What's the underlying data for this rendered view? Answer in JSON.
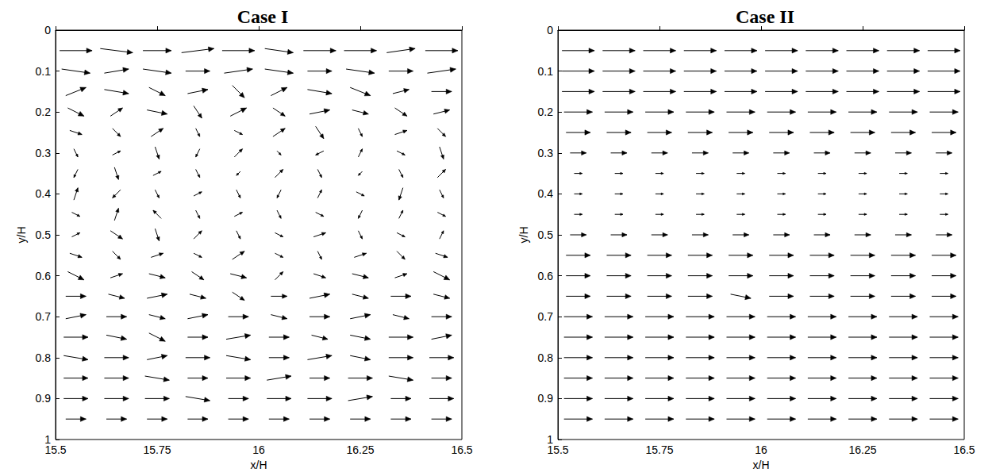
{
  "chart_data": [
    {
      "type": "vector",
      "title": "Case I",
      "x_label": "x/H",
      "y_label": "y/H",
      "xlim": [
        15.5,
        16.5
      ],
      "xticks": [
        15.5,
        15.75,
        16,
        16.25,
        16.5
      ],
      "ylim": [
        0,
        1
      ],
      "yticks": [
        0,
        0.1,
        0.2,
        0.3,
        0.4,
        0.5,
        0.6,
        0.7,
        0.8,
        0.9,
        1
      ],
      "x": [
        15.55,
        15.65,
        15.75,
        15.85,
        15.95,
        16.05,
        16.15,
        16.25,
        16.35,
        16.45
      ],
      "rows": [
        {
          "y": 0.05,
          "u": [
            0.08,
            0.08,
            0.07,
            0.08,
            0.08,
            0.07,
            0.08,
            0.08,
            0.07,
            0.08
          ],
          "v": [
            0,
            0.01,
            0,
            -0.01,
            0,
            0.01,
            0,
            0,
            -0.01,
            0
          ]
        },
        {
          "y": 0.1,
          "u": [
            0.07,
            0.06,
            0.07,
            0.06,
            0.07,
            0.07,
            0.06,
            0.07,
            0.06,
            0.07
          ],
          "v": [
            0.01,
            -0.01,
            0.01,
            0,
            -0.01,
            0.01,
            0,
            0.01,
            0,
            -0.01
          ]
        },
        {
          "y": 0.15,
          "u": [
            0.05,
            0.06,
            0.04,
            0.05,
            0.03,
            0.04,
            0.06,
            0.05,
            0.04,
            0.05
          ],
          "v": [
            -0.02,
            0.01,
            0.02,
            -0.01,
            0.03,
            -0.02,
            0.01,
            0.02,
            -0.01,
            0
          ]
        },
        {
          "y": 0.2,
          "u": [
            0.04,
            0.03,
            0.05,
            0.02,
            0.04,
            0.03,
            0.05,
            0.04,
            0.03,
            0.04
          ],
          "v": [
            0.02,
            -0.02,
            0.01,
            0.03,
            -0.02,
            0.02,
            -0.01,
            0.01,
            0.02,
            -0.01
          ]
        },
        {
          "y": 0.25,
          "u": [
            0.03,
            0.02,
            0.03,
            0.01,
            0.02,
            0.03,
            0.02,
            0.01,
            0.03,
            0.02
          ],
          "v": [
            0.01,
            0.02,
            -0.02,
            0.02,
            0.01,
            -0.02,
            0.03,
            0.02,
            -0.01,
            0.02
          ]
        },
        {
          "y": 0.3,
          "u": [
            0.01,
            0.02,
            0.01,
            -0.01,
            0.02,
            0.01,
            -0.02,
            0.01,
            0.02,
            0.01
          ],
          "v": [
            0.02,
            -0.01,
            0.03,
            0.02,
            -0.02,
            0.01,
            0.01,
            -0.02,
            0.01,
            0.03
          ]
        },
        {
          "y": 0.35,
          "u": [
            -0.01,
            0.01,
            0.02,
            0.01,
            -0.01,
            0.02,
            0.01,
            -0.01,
            0.01,
            0.02
          ],
          "v": [
            0.02,
            0.03,
            -0.01,
            0.02,
            0.01,
            -0.02,
            0.02,
            0.01,
            0.02,
            -0.02
          ]
        },
        {
          "y": 0.4,
          "u": [
            0.01,
            -0.02,
            0.01,
            0.02,
            0.01,
            -0.01,
            0.01,
            0.02,
            -0.01,
            0.01
          ],
          "v": [
            -0.03,
            0.02,
            0.02,
            -0.01,
            0.02,
            0.02,
            -0.02,
            0.01,
            0.03,
            0.02
          ]
        },
        {
          "y": 0.45,
          "u": [
            0.02,
            0.01,
            -0.02,
            0.01,
            0.02,
            0.01,
            0.02,
            -0.01,
            0.01,
            0.02
          ],
          "v": [
            0.01,
            -0.03,
            -0.02,
            0.02,
            -0.01,
            0.02,
            0.01,
            0.02,
            -0.02,
            0.01
          ]
        },
        {
          "y": 0.5,
          "u": [
            0.02,
            0.03,
            0.01,
            0.02,
            0.01,
            0.02,
            0.03,
            0.01,
            0.02,
            0.01
          ],
          "v": [
            -0.01,
            0.02,
            0.03,
            -0.02,
            0.02,
            0.01,
            -0.01,
            0.02,
            0.01,
            -0.02
          ]
        },
        {
          "y": 0.55,
          "u": [
            0.03,
            0.02,
            0.03,
            0.02,
            0.03,
            0.02,
            0.01,
            0.03,
            0.02,
            0.03
          ],
          "v": [
            0.01,
            0.02,
            -0.01,
            0.01,
            -0.02,
            0.01,
            0.02,
            -0.01,
            0.02,
            0.01
          ]
        },
        {
          "y": 0.6,
          "u": [
            0.04,
            0.03,
            0.04,
            0.03,
            0.04,
            0.02,
            0.03,
            0.04,
            0.03,
            0.04
          ],
          "v": [
            0.02,
            -0.01,
            0.01,
            0.02,
            0.01,
            -0.02,
            0.01,
            0.01,
            -0.01,
            0.02
          ]
        },
        {
          "y": 0.65,
          "u": [
            0.05,
            0.04,
            0.05,
            0.04,
            0.03,
            0.04,
            0.05,
            0.04,
            0.05,
            0.04
          ],
          "v": [
            0,
            0.01,
            -0.01,
            0.01,
            0.02,
            0,
            -0.01,
            0.01,
            0,
            0.01
          ]
        },
        {
          "y": 0.7,
          "u": [
            0.05,
            0.05,
            0.04,
            0.05,
            0.05,
            0.04,
            0.05,
            0.05,
            0.04,
            0.05
          ],
          "v": [
            -0.01,
            0,
            0.01,
            -0.01,
            0,
            0.01,
            0,
            -0.01,
            0.01,
            0
          ]
        },
        {
          "y": 0.75,
          "u": [
            0.06,
            0.05,
            0.04,
            0.05,
            0.06,
            0.05,
            0.04,
            0.05,
            0.06,
            0.05
          ],
          "v": [
            0,
            0.01,
            0.02,
            0,
            -0.01,
            0,
            0.01,
            0.01,
            0,
            -0.01
          ]
        },
        {
          "y": 0.8,
          "u": [
            0.06,
            0.06,
            0.05,
            0.06,
            0.06,
            0.05,
            0.06,
            0.05,
            0.06,
            0.06
          ],
          "v": [
            0.01,
            0,
            -0.01,
            0,
            0.01,
            0,
            -0.01,
            0.01,
            0,
            0
          ]
        },
        {
          "y": 0.85,
          "u": [
            0.06,
            0.06,
            0.06,
            0.05,
            0.06,
            0.06,
            0.05,
            0.06,
            0.06,
            0.05
          ],
          "v": [
            0,
            0,
            0.01,
            0,
            0,
            -0.01,
            0,
            0,
            0.01,
            0
          ]
        },
        {
          "y": 0.9,
          "u": [
            0.06,
            0.06,
            0.06,
            0.06,
            0.05,
            0.06,
            0.06,
            0.06,
            0.05,
            0.06
          ],
          "v": [
            0,
            0,
            0,
            0.01,
            0,
            0,
            0,
            -0.01,
            0,
            0
          ]
        },
        {
          "y": 0.95,
          "u": [
            0.05,
            0.05,
            0.05,
            0.05,
            0.05,
            0.05,
            0.05,
            0.05,
            0.05,
            0.05
          ],
          "v": [
            0,
            0,
            0,
            0,
            0,
            0,
            0,
            0,
            0,
            0
          ]
        }
      ]
    },
    {
      "type": "vector",
      "title": "Case II",
      "x_label": "x/H",
      "y_label": "y/H",
      "xlim": [
        15.5,
        16.5
      ],
      "xticks": [
        15.5,
        15.75,
        16,
        16.25,
        16.5
      ],
      "ylim": [
        0,
        1
      ],
      "yticks": [
        0,
        0.1,
        0.2,
        0.3,
        0.4,
        0.5,
        0.6,
        0.7,
        0.8,
        0.9,
        1
      ],
      "x": [
        15.55,
        15.65,
        15.75,
        15.85,
        15.95,
        16.05,
        16.15,
        16.25,
        16.35,
        16.45
      ],
      "rows": [
        {
          "y": 0.05,
          "u": [
            0.08,
            0.08,
            0.08,
            0.08,
            0.08,
            0.08,
            0.08,
            0.08,
            0.08,
            0.08
          ],
          "v": [
            0,
            0,
            0,
            0,
            0,
            0,
            0,
            0,
            0,
            0
          ]
        },
        {
          "y": 0.1,
          "u": [
            0.08,
            0.08,
            0.08,
            0.08,
            0.08,
            0.08,
            0.08,
            0.08,
            0.08,
            0.08
          ],
          "v": [
            0,
            0,
            0,
            0,
            0,
            0,
            0,
            0,
            0,
            0
          ]
        },
        {
          "y": 0.15,
          "u": [
            0.08,
            0.08,
            0.08,
            0.08,
            0.08,
            0.08,
            0.08,
            0.08,
            0.08,
            0.08
          ],
          "v": [
            0,
            0,
            0,
            0,
            0,
            0,
            0,
            0,
            0,
            0
          ]
        },
        {
          "y": 0.2,
          "u": [
            0.07,
            0.07,
            0.07,
            0.07,
            0.07,
            0.07,
            0.07,
            0.07,
            0.07,
            0.07
          ],
          "v": [
            0,
            0,
            0,
            0,
            0,
            0,
            0,
            0,
            0,
            0
          ]
        },
        {
          "y": 0.25,
          "u": [
            0.06,
            0.06,
            0.06,
            0.06,
            0.06,
            0.06,
            0.06,
            0.06,
            0.06,
            0.06
          ],
          "v": [
            0,
            0,
            0,
            0,
            0,
            0,
            0,
            0,
            0,
            0
          ]
        },
        {
          "y": 0.3,
          "u": [
            0.04,
            0.04,
            0.04,
            0.04,
            0.04,
            0.04,
            0.04,
            0.04,
            0.04,
            0.04
          ],
          "v": [
            0,
            0,
            0,
            0,
            0,
            0,
            0,
            0,
            0,
            0
          ]
        },
        {
          "y": 0.35,
          "u": [
            0.02,
            0.02,
            0.02,
            0.02,
            0.02,
            0.02,
            0.02,
            0.02,
            0.02,
            0.02
          ],
          "v": [
            0,
            0,
            0,
            0,
            0,
            0,
            0,
            0,
            0,
            0
          ]
        },
        {
          "y": 0.4,
          "u": [
            0.02,
            0.02,
            0.02,
            0.02,
            0.02,
            0.02,
            0.02,
            0.02,
            0.02,
            0.02
          ],
          "v": [
            0,
            0,
            0,
            0,
            0,
            0,
            0,
            0,
            0,
            0
          ]
        },
        {
          "y": 0.45,
          "u": [
            0.02,
            0.02,
            0.02,
            0.02,
            0.02,
            0.02,
            0.02,
            0.02,
            0.02,
            0.02
          ],
          "v": [
            0,
            0,
            0,
            0,
            0,
            0,
            0,
            0,
            0,
            0
          ]
        },
        {
          "y": 0.5,
          "u": [
            0.04,
            0.04,
            0.04,
            0.04,
            0.04,
            0.04,
            0.04,
            0.04,
            0.04,
            0.04
          ],
          "v": [
            0,
            0,
            0,
            0,
            0,
            0,
            0,
            0,
            0,
            0
          ]
        },
        {
          "y": 0.55,
          "u": [
            0.06,
            0.06,
            0.06,
            0.06,
            0.06,
            0.06,
            0.06,
            0.06,
            0.06,
            0.06
          ],
          "v": [
            0,
            0,
            0,
            0,
            0,
            0,
            0,
            0,
            0,
            0
          ]
        },
        {
          "y": 0.6,
          "u": [
            0.06,
            0.06,
            0.06,
            0.06,
            0.06,
            0.06,
            0.06,
            0.06,
            0.06,
            0.06
          ],
          "v": [
            0,
            0,
            0,
            0,
            0,
            0,
            0,
            0,
            0,
            0
          ]
        },
        {
          "y": 0.65,
          "u": [
            0.06,
            0.06,
            0.06,
            0.06,
            0.05,
            0.06,
            0.06,
            0.06,
            0.06,
            0.06
          ],
          "v": [
            0,
            0,
            0,
            0,
            0.01,
            0,
            0,
            0,
            0,
            0
          ]
        },
        {
          "y": 0.7,
          "u": [
            0.07,
            0.07,
            0.07,
            0.07,
            0.07,
            0.07,
            0.07,
            0.07,
            0.07,
            0.07
          ],
          "v": [
            0,
            0,
            0,
            0,
            0,
            0,
            0,
            0,
            0,
            0
          ]
        },
        {
          "y": 0.75,
          "u": [
            0.07,
            0.07,
            0.07,
            0.07,
            0.07,
            0.07,
            0.07,
            0.07,
            0.07,
            0.07
          ],
          "v": [
            0,
            0,
            0,
            0,
            0,
            0,
            0,
            0,
            0,
            0
          ]
        },
        {
          "y": 0.8,
          "u": [
            0.07,
            0.07,
            0.07,
            0.07,
            0.07,
            0.07,
            0.07,
            0.07,
            0.07,
            0.07
          ],
          "v": [
            0,
            0,
            0,
            0,
            0,
            0,
            0,
            0,
            0,
            0
          ]
        },
        {
          "y": 0.85,
          "u": [
            0.07,
            0.07,
            0.07,
            0.07,
            0.07,
            0.07,
            0.07,
            0.07,
            0.07,
            0.07
          ],
          "v": [
            0,
            0,
            0,
            0,
            0,
            0,
            0,
            0,
            0,
            0
          ]
        },
        {
          "y": 0.9,
          "u": [
            0.07,
            0.07,
            0.07,
            0.07,
            0.07,
            0.07,
            0.07,
            0.07,
            0.07,
            0.07
          ],
          "v": [
            0,
            0,
            0,
            0,
            0,
            0,
            0,
            0,
            0,
            0
          ]
        },
        {
          "y": 0.95,
          "u": [
            0.07,
            0.07,
            0.07,
            0.07,
            0.07,
            0.07,
            0.07,
            0.07,
            0.07,
            0.07
          ],
          "v": [
            0,
            0,
            0,
            0,
            0,
            0,
            0,
            0,
            0,
            0
          ]
        }
      ]
    }
  ]
}
